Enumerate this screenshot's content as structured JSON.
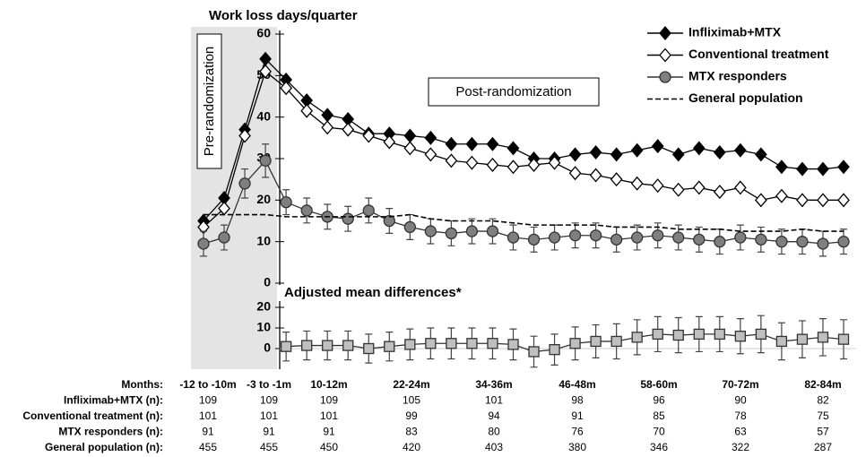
{
  "chart_data": [
    {
      "type": "line",
      "title": "Work loss days/quarter",
      "annotations": [
        "Pre-randomization",
        "Post-randomization"
      ],
      "categories": [
        null,
        null,
        null,
        null,
        null,
        null,
        null,
        null,
        null,
        null,
        null,
        null,
        null,
        null,
        null,
        null,
        null,
        null,
        null,
        null,
        null,
        null,
        null,
        null,
        null,
        null,
        null,
        null,
        null,
        null,
        null,
        null
      ],
      "ylim": [
        0,
        60
      ],
      "yticks": [
        0,
        10,
        20,
        30,
        40,
        50,
        60
      ],
      "grid": false,
      "legend": "upper right",
      "series": [
        {
          "name": "Infliximab+MTX",
          "color": "#000000",
          "fill": "#000000",
          "marker": "diamond",
          "values": [
            15,
            20.5,
            37,
            54,
            49,
            44,
            40.5,
            39.5,
            36,
            36,
            35.5,
            35,
            33.5,
            33.5,
            33.5,
            32.5,
            30,
            30,
            31,
            31.5,
            31,
            32,
            33,
            31,
            32.5,
            31.5,
            32,
            31,
            28,
            27.5,
            27.5,
            28
          ]
        },
        {
          "name": "Conventional treatment",
          "color": "#000000",
          "fill": "#ffffff",
          "marker": "diamond",
          "values": [
            13.5,
            18,
            35.5,
            51,
            47,
            41.5,
            37.5,
            37,
            35.5,
            34,
            32.5,
            31,
            29.5,
            29,
            28.5,
            28,
            28.5,
            29,
            26.5,
            26,
            25,
            24,
            23.5,
            22.5,
            23,
            22,
            23,
            20,
            21,
            20,
            20,
            20
          ]
        },
        {
          "name": "MTX responders",
          "color": "#333333",
          "fill": "#7f7f7f",
          "marker": "circle",
          "values": [
            9.5,
            11,
            24,
            29.5,
            19.5,
            17.5,
            16,
            15.5,
            17.5,
            15,
            13.5,
            12.5,
            12,
            12.5,
            12.5,
            11,
            10.5,
            11,
            11.5,
            11.5,
            10.5,
            11,
            11.5,
            11,
            10.5,
            10,
            11,
            10.5,
            10,
            10,
            9.5,
            10
          ],
          "errors": [
            3,
            3,
            3.5,
            4,
            3,
            3,
            3,
            3,
            3,
            3,
            3,
            3,
            3,
            3,
            3,
            3,
            3,
            3,
            3,
            3,
            3,
            3,
            3,
            3,
            3,
            3,
            3,
            3,
            3,
            3,
            3,
            3
          ]
        },
        {
          "name": "General population",
          "color": "#000000",
          "dash": true,
          "marker": "none",
          "values": [
            16.5,
            16.5,
            16.5,
            16.5,
            16,
            16,
            16,
            16,
            16,
            16,
            16.5,
            15.5,
            15,
            15,
            15,
            14.5,
            14,
            14,
            14,
            14,
            13.5,
            13.5,
            13.5,
            13,
            13,
            13,
            12.5,
            12.5,
            12.5,
            13,
            12.5,
            12.5
          ]
        }
      ]
    },
    {
      "type": "line",
      "title": "Adjusted mean differences*",
      "categories": [
        null,
        null,
        null,
        null,
        null,
        null,
        null,
        null,
        null,
        null,
        null,
        null,
        null,
        null,
        null,
        null,
        null,
        null,
        null,
        null,
        null,
        null,
        null,
        null,
        null,
        null,
        null,
        null,
        null,
        null,
        null,
        null
      ],
      "ylim": [
        -10,
        20
      ],
      "yticks": [
        0,
        10,
        20
      ],
      "grid": false,
      "series": [
        {
          "color": "#333333",
          "fill": "#bfbfbf",
          "marker": "square",
          "values": [
            null,
            null,
            null,
            null,
            1,
            1.5,
            1.5,
            1.5,
            0,
            1,
            2,
            2.5,
            2.5,
            2.5,
            2.5,
            2,
            -1.5,
            -0.5,
            2.5,
            3.5,
            3.5,
            5.5,
            7,
            6.5,
            7,
            7,
            6,
            7,
            3.5,
            4.5,
            5.5,
            4.5
          ],
          "errors": [
            null,
            null,
            null,
            null,
            7,
            7,
            7,
            7,
            7,
            7,
            7.5,
            7.5,
            7.5,
            7.5,
            7.5,
            7.5,
            7.5,
            7.5,
            8,
            8,
            8.5,
            8.5,
            8.5,
            8.5,
            8.5,
            8.5,
            8.5,
            9,
            9,
            9,
            9,
            9.5
          ]
        }
      ]
    }
  ],
  "table": {
    "header": "Months:",
    "columns": [
      "-12 to -10m",
      "-3 to -1m",
      "10-12m",
      "22-24m",
      "34-36m",
      "46-48m",
      "58-60m",
      "70-72m",
      "82-84m"
    ],
    "rows": [
      {
        "label": "Infliximab+MTX (n):",
        "values": [
          109,
          109,
          109,
          105,
          101,
          98,
          96,
          90,
          82
        ]
      },
      {
        "label": "Conventional treatment (n):",
        "values": [
          101,
          101,
          101,
          99,
          94,
          91,
          85,
          78,
          75
        ]
      },
      {
        "label": "MTX responders (n):",
        "values": [
          91,
          91,
          91,
          83,
          80,
          76,
          70,
          63,
          57
        ]
      },
      {
        "label": "General population (n):",
        "values": [
          455,
          455,
          450,
          420,
          403,
          380,
          346,
          322,
          287
        ]
      }
    ]
  }
}
